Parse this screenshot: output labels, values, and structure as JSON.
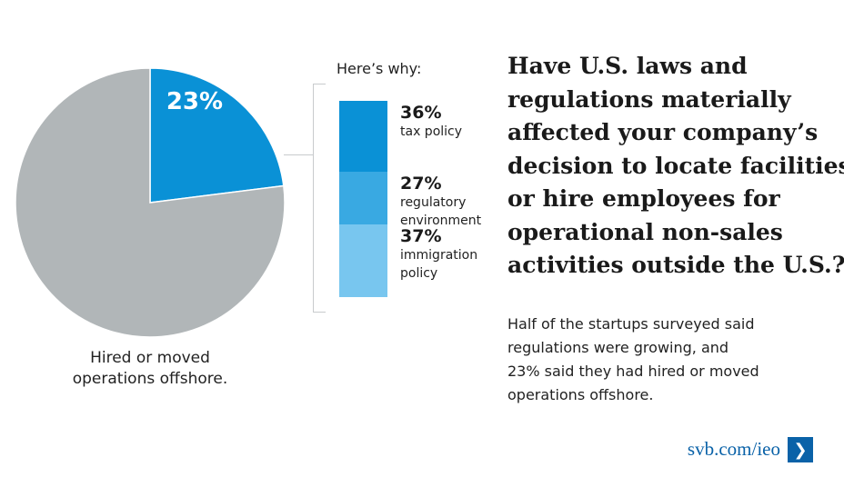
{
  "chart_data": [
    {
      "type": "pie",
      "slices": [
        {
          "label": "Hired or moved operations offshore",
          "value": 23,
          "display": "23%",
          "color": "#0a91d6"
        },
        {
          "label": "",
          "value": 77,
          "color": "#b1b6b8"
        }
      ],
      "caption": "Hired or moved operations offshore."
    },
    {
      "type": "bar",
      "stacked": true,
      "title": "Here’s why:",
      "series": [
        {
          "name": "tax policy",
          "value": 36,
          "display": "36%",
          "lines": [
            "tax policy"
          ],
          "color": "#0a91d6"
        },
        {
          "name": "regulatory environment",
          "value": 27,
          "display": "27%",
          "lines": [
            "regulatory",
            "environment"
          ],
          "color": "#39a9e2"
        },
        {
          "name": "immigration policy",
          "value": 37,
          "display": "37%",
          "lines": [
            "immigration",
            "policy"
          ],
          "color": "#78c6ef"
        }
      ]
    }
  ],
  "headline": [
    "Have U.S. laws and",
    "regulations materially",
    "affected your company’s",
    "decision to locate facilities",
    "or hire employees for",
    "operational non-sales",
    "activities outside the U.S.?"
  ],
  "summary": [
    "Half of the startups surveyed said",
    "regulations were growing, and",
    "23% said they had hired or moved",
    "operations offshore."
  ],
  "footer": {
    "link_text": "svb.com/ieo",
    "arrow_icon": "chevron-right-icon"
  }
}
